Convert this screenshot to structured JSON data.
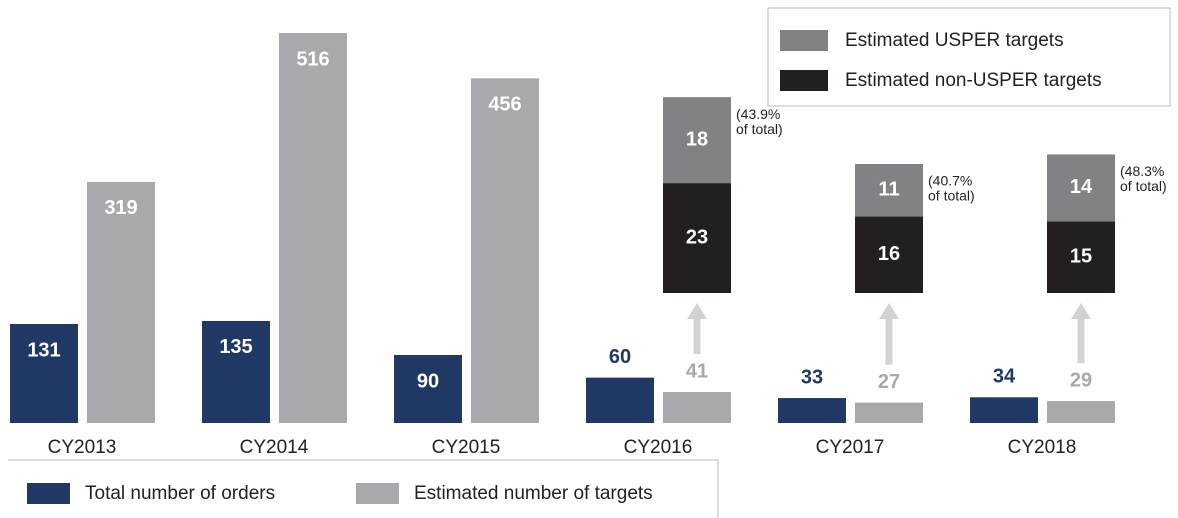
{
  "chart_data": {
    "type": "bar",
    "categories": [
      "CY2013",
      "CY2014",
      "CY2015",
      "CY2016",
      "CY2017",
      "CY2018"
    ],
    "series": [
      {
        "name": "Total number of orders",
        "color": "#203864",
        "values": [
          131,
          135,
          90,
          60,
          33,
          34
        ]
      },
      {
        "name": "Estimated number of targets",
        "color": "#a7a9ac",
        "values": [
          319,
          516,
          456,
          41,
          27,
          29
        ]
      }
    ],
    "ylim": [
      0,
      516
    ],
    "legend_position": "bottom-left",
    "breakdown": {
      "type": "stacked-bar",
      "ylim": [
        0,
        54
      ],
      "legend_position": "top-right",
      "series": [
        {
          "name": "Estimated non-USPER targets",
          "color": "#231f20",
          "values": [
            null,
            null,
            null,
            23,
            16,
            15
          ]
        },
        {
          "name": "Estimated USPER targets",
          "color": "#808285",
          "values": [
            null,
            null,
            null,
            18,
            11,
            14
          ]
        }
      ],
      "notes": [
        null,
        null,
        null,
        [
          "(43.9%",
          "of total)"
        ],
        [
          "(40.7%",
          "of total)"
        ],
        [
          "(48.3%",
          "of total)"
        ]
      ]
    }
  }
}
